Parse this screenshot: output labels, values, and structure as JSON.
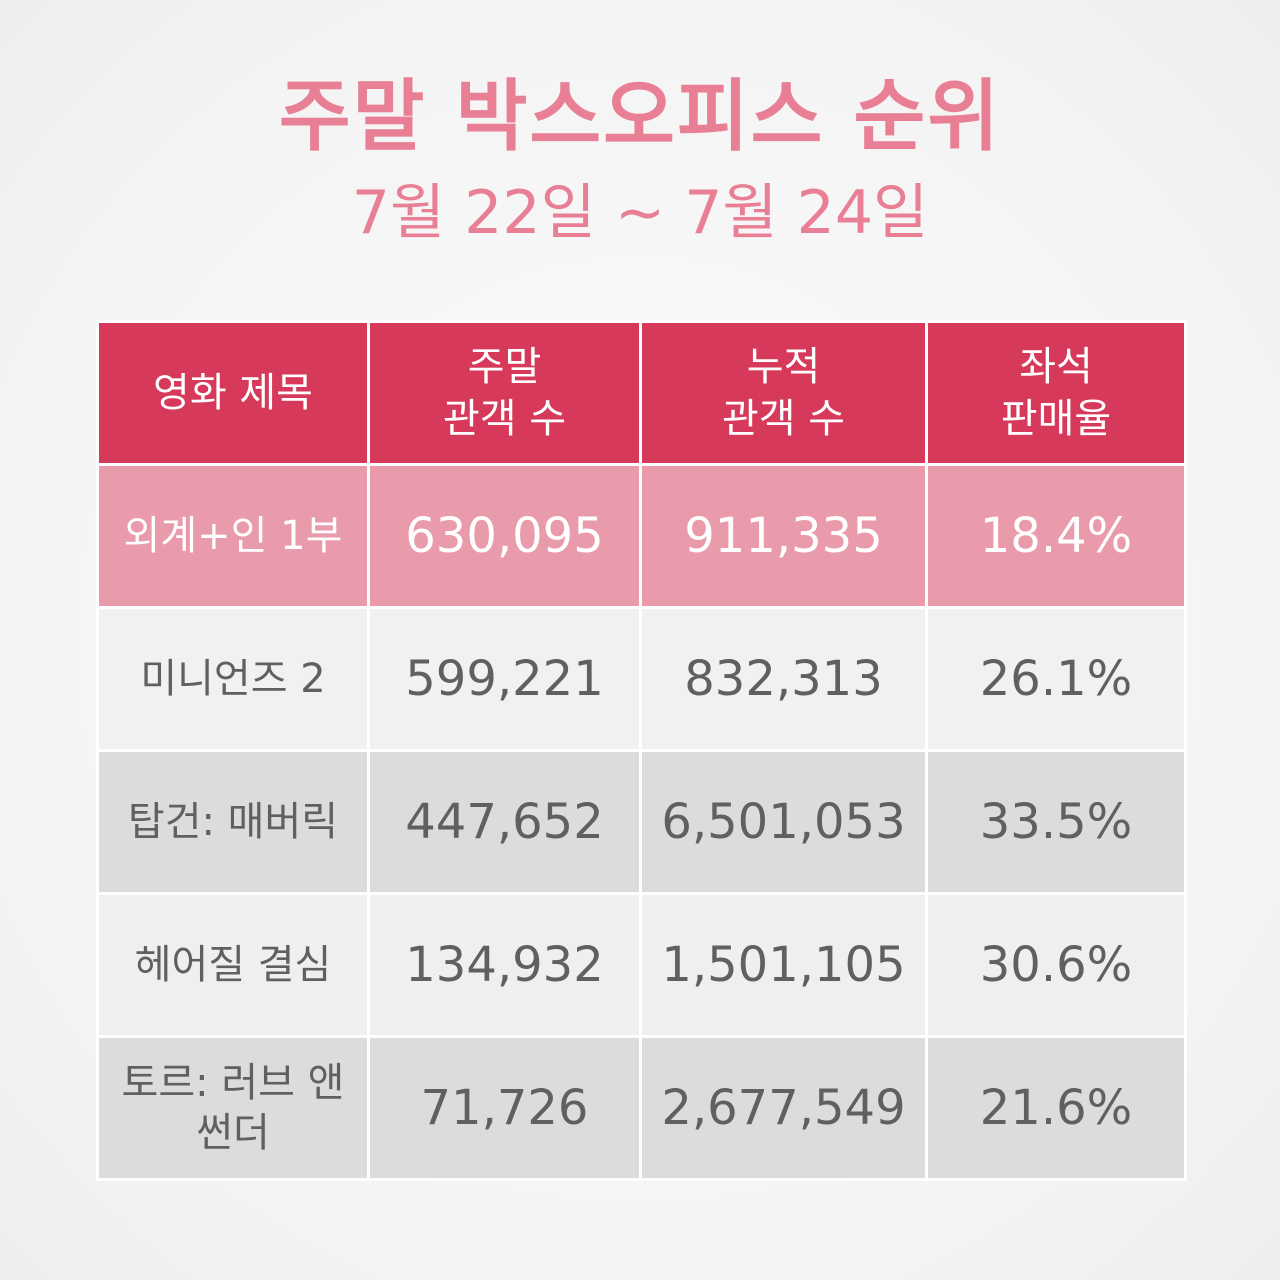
{
  "header": {
    "title": "주말 박스오피스 순위",
    "date_range": "7월 22일 ~ 7월 24일"
  },
  "table": {
    "columns": [
      [
        "영화 제목"
      ],
      [
        "주말",
        "관객 수"
      ],
      [
        "누적",
        "관객 수"
      ],
      [
        "좌석",
        "판매율"
      ]
    ],
    "rows": [
      {
        "title": [
          "외계+인 1부"
        ],
        "weekend": "630,095",
        "total": "911,335",
        "seat_rate": "18.4%"
      },
      {
        "title": [
          "미니언즈 2"
        ],
        "weekend": "599,221",
        "total": "832,313",
        "seat_rate": "26.1%"
      },
      {
        "title": [
          "탑건: 매버릭"
        ],
        "weekend": "447,652",
        "total": "6,501,053",
        "seat_rate": "33.5%"
      },
      {
        "title": [
          "헤어질 결심"
        ],
        "weekend": "134,932",
        "total": "1,501,105",
        "seat_rate": "30.6%"
      },
      {
        "title": [
          "토르: 러브 앤",
          "썬더"
        ],
        "weekend": "71,726",
        "total": "2,677,549",
        "seat_rate": "21.6%"
      }
    ]
  },
  "colors": {
    "accent_title": "#e87f95",
    "header_bg": "#d6395a",
    "highlight_row_bg": "#e99aab"
  }
}
